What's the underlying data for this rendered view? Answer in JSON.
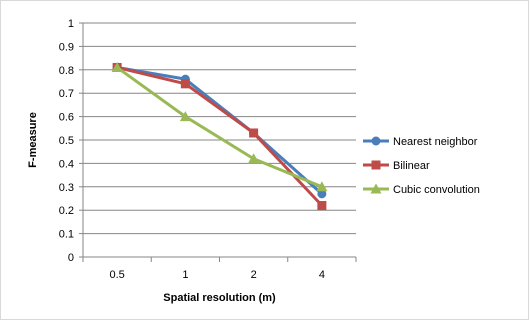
{
  "chart_data": {
    "type": "line",
    "title": "",
    "xlabel": "Spatial resolution (m)",
    "ylabel": "F-measure",
    "categories": [
      "0.5",
      "1",
      "2",
      "4"
    ],
    "ylim": [
      0,
      1
    ],
    "yticks": [
      "0",
      "0.1",
      "0.2",
      "0.3",
      "0.4",
      "0.5",
      "0.6",
      "0.7",
      "0.8",
      "0.9",
      "1"
    ],
    "grid": true,
    "legend_position": "right",
    "series": [
      {
        "name": "Nearest neighbor",
        "color": "#4a7ebb",
        "marker": "circle",
        "values": [
          0.81,
          0.76,
          0.53,
          0.27
        ]
      },
      {
        "name": "Bilinear",
        "color": "#be4b48",
        "marker": "square",
        "values": [
          0.81,
          0.74,
          0.53,
          0.22
        ]
      },
      {
        "name": "Cubic convolution",
        "color": "#98b954",
        "marker": "triangle",
        "values": [
          0.81,
          0.6,
          0.42,
          0.3
        ]
      }
    ]
  }
}
